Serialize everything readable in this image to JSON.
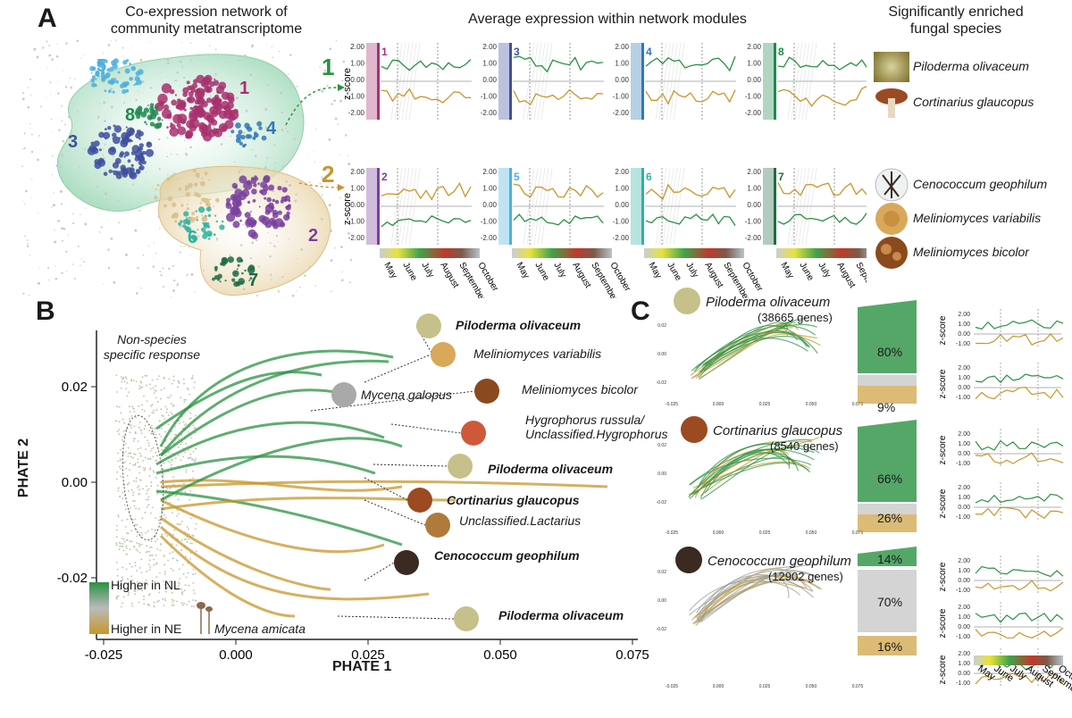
{
  "panel_letters": {
    "a": "A",
    "b": "B",
    "c": "C"
  },
  "headers": {
    "network_line1": "Co-expression network of",
    "network_line2": "community metatranscriptome",
    "avg": "Average expression within network modules",
    "fungal_line1": "Significantly enriched",
    "fungal_line2": "fungal species"
  },
  "network_labels": [
    "1",
    "2",
    "3",
    "4",
    "5",
    "6",
    "7",
    "8"
  ],
  "big_group_labels": {
    "top": "1",
    "bottom": "2"
  },
  "module_panels": {
    "top": [
      "1",
      "3",
      "4",
      "8"
    ],
    "bottom": [
      "2",
      "5",
      "6",
      "7"
    ],
    "y_ticks": [
      "2.00",
      "1.00",
      "0.00",
      "-1.00",
      "-2.00"
    ],
    "ylabel": "z-score",
    "months": [
      "May",
      "June",
      "July",
      "August",
      "September",
      "October"
    ]
  },
  "enriched": {
    "top": [
      "Piloderma olivaceum",
      "Cortinarius glaucopus"
    ],
    "bottom": [
      "Cenococcum geophilum",
      "Meliniomyces variabilis",
      "Meliniomyces bicolor"
    ]
  },
  "phate": {
    "non_species_line1": "Non-species",
    "non_species_line2": "specific response",
    "xlabel": "PHATE 1",
    "ylabel": "PHATE 2",
    "x_ticks": [
      "-0.025",
      "0.000",
      "0.025",
      "0.050",
      "0.075"
    ],
    "y_ticks": [
      "0.02",
      "0.00",
      "-0.02"
    ],
    "legend_high_nl": "Higher in NL",
    "legend_high_ne": "Higher in NE",
    "mycena_amicata": "Mycena amicata",
    "species": [
      {
        "name": "Piloderma olivaceum",
        "style": "bi"
      },
      {
        "name": "Meliniomyces variabilis",
        "style": "it"
      },
      {
        "name": "Mycena galopus",
        "style": "it"
      },
      {
        "name": "Meliniomyces bicolor",
        "style": "it"
      },
      {
        "name": "Hygrophorus russula/",
        "style": "it"
      },
      {
        "name": "Unclassified.Hygrophorus",
        "style": "it"
      },
      {
        "name": "Piloderma olivaceum",
        "style": "bi"
      },
      {
        "name": "Cortinarius glaucopus",
        "style": "bi"
      },
      {
        "name": "Unclassified.Lactarius",
        "style": "it"
      },
      {
        "name": "Cenococcum geophilum",
        "style": "bi"
      },
      {
        "name": "Piloderma olivaceum",
        "style": "bi"
      }
    ]
  },
  "panel_c": [
    {
      "species": "Piloderma olivaceum",
      "genes": "(38665 genes)",
      "pct_top": "80%",
      "pct_bottom": "9%",
      "x_ticks": [
        "-0.025",
        "0.000",
        "0.025",
        "0.050",
        "0.075"
      ],
      "y_ticks": [
        "0.02",
        "0.00",
        "-0.02"
      ],
      "z_ticks": [
        "2.00",
        "1.00",
        "0.00",
        "-1.00"
      ]
    },
    {
      "species": "Cortinarius glaucopus",
      "genes": "(8540 genes)",
      "pct_top": "66%",
      "pct_bottom": "26%",
      "x_ticks": [
        "-0.025",
        "0.000",
        "0.025",
        "0.050",
        "0.075"
      ],
      "y_ticks": [
        "0.02",
        "0.00",
        "-0.02"
      ],
      "z_ticks": [
        "2.00",
        "1.00",
        "0.00",
        "-1.00"
      ]
    },
    {
      "species": "Cenococcum geophilum",
      "genes": "(12902 genes)",
      "pct_top": "14%",
      "pct_mid": "70%",
      "pct_bottom": "16%",
      "x_ticks": [
        "-0.025",
        "0.000",
        "0.025",
        "0.050",
        "0.075"
      ],
      "y_ticks": [
        "0.02",
        "0.00",
        "-0.02"
      ],
      "z_ticks": [
        "3.00",
        "2.00",
        "1.00",
        "0.00",
        "-1.00"
      ]
    }
  ],
  "colors": {
    "green": "#2a9142",
    "gold": "#c8962b",
    "module1": "#a8306f",
    "module2": "#7a3f9e",
    "module3": "#3f4f9e",
    "module4": "#2f79b8",
    "module5": "#4bb0de",
    "module6": "#2eb3a0",
    "module7": "#1f6b45",
    "module8": "#1e8a4f"
  }
}
